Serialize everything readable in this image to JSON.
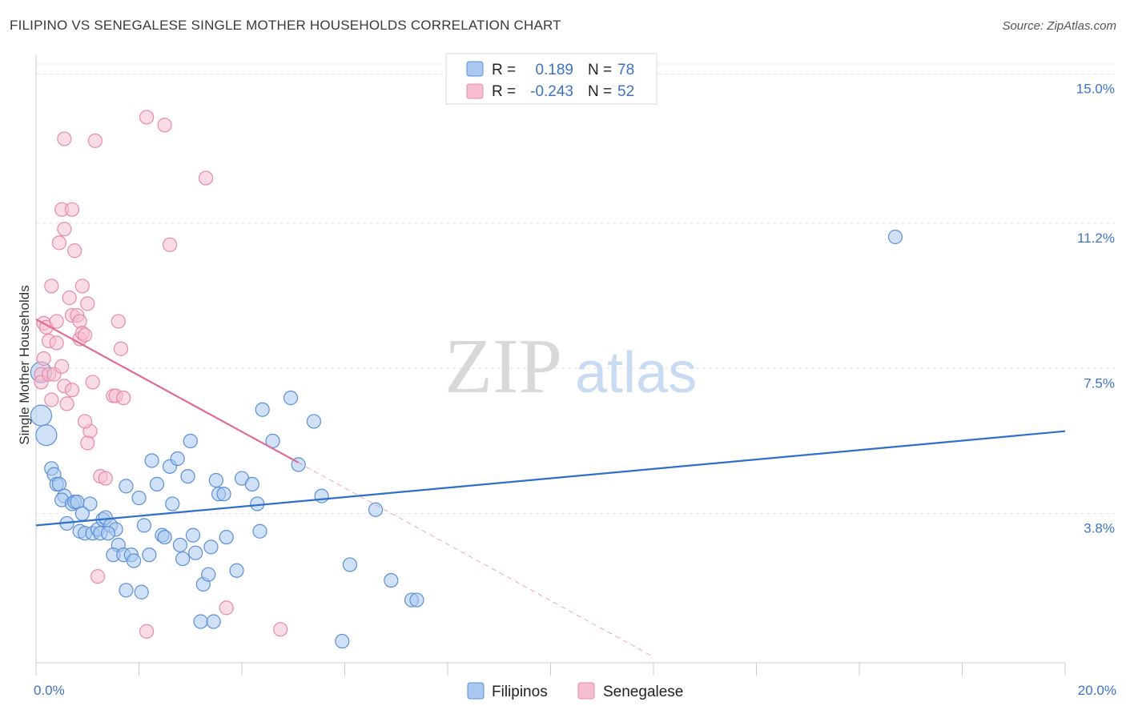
{
  "chart_data": {
    "type": "scatter",
    "title": "FILIPINO VS SENEGALESE SINGLE MOTHER HOUSEHOLDS CORRELATION CHART",
    "source": "Source: ZipAtlas.com",
    "ylabel": "Single Mother Households",
    "xlabel": "",
    "xlim": [
      0,
      20
    ],
    "ylim": [
      0,
      15.5
    ],
    "x_tick_labels": [
      "0.0%",
      "20.0%"
    ],
    "y_ticks": [
      3.8,
      7.5,
      11.2,
      15.0
    ],
    "y_tick_labels": [
      "3.8%",
      "7.5%",
      "11.2%",
      "15.0%"
    ],
    "grid": true,
    "watermark": "ZIPatlas",
    "legend": {
      "position": "top-center",
      "entries": [
        {
          "r_label": "R =",
          "r_value": "0.189",
          "n_label": "N =",
          "n_value": "78"
        },
        {
          "r_label": "R =",
          "r_value": "-0.243",
          "n_label": "N =",
          "n_value": "52"
        }
      ]
    },
    "series": [
      {
        "name": "Filipinos",
        "color": "#5b8fd8",
        "fill": "#aac8f0",
        "trend": {
          "x0": 0,
          "y0": 3.5,
          "x1": 20,
          "y1": 5.9,
          "color": "#2e6fcc"
        },
        "points": [
          [
            0.1,
            7.4
          ],
          [
            0.1,
            6.3
          ],
          [
            0.2,
            5.8
          ],
          [
            0.3,
            4.95
          ],
          [
            0.35,
            4.8
          ],
          [
            0.4,
            4.55
          ],
          [
            0.45,
            4.55
          ],
          [
            0.55,
            4.25
          ],
          [
            0.5,
            4.15
          ],
          [
            0.7,
            4.05
          ],
          [
            0.75,
            4.1
          ],
          [
            0.8,
            4.1
          ],
          [
            1.05,
            4.05
          ],
          [
            0.9,
            3.8
          ],
          [
            0.6,
            3.55
          ],
          [
            0.85,
            3.35
          ],
          [
            0.95,
            3.3
          ],
          [
            1.1,
            3.3
          ],
          [
            1.2,
            3.4
          ],
          [
            1.25,
            3.3
          ],
          [
            1.3,
            3.65
          ],
          [
            1.35,
            3.7
          ],
          [
            1.45,
            3.5
          ],
          [
            1.55,
            3.4
          ],
          [
            1.4,
            3.3
          ],
          [
            1.6,
            3.0
          ],
          [
            1.5,
            2.75
          ],
          [
            1.7,
            2.75
          ],
          [
            1.85,
            2.75
          ],
          [
            1.9,
            2.6
          ],
          [
            1.75,
            4.5
          ],
          [
            2.0,
            4.2
          ],
          [
            2.1,
            3.5
          ],
          [
            2.2,
            2.75
          ],
          [
            2.25,
            5.15
          ],
          [
            2.35,
            4.55
          ],
          [
            2.45,
            3.25
          ],
          [
            2.5,
            3.2
          ],
          [
            2.6,
            5.0
          ],
          [
            2.65,
            4.05
          ],
          [
            2.75,
            5.2
          ],
          [
            2.8,
            3.0
          ],
          [
            2.85,
            2.65
          ],
          [
            2.95,
            4.75
          ],
          [
            3.0,
            5.65
          ],
          [
            3.05,
            3.25
          ],
          [
            3.1,
            2.8
          ],
          [
            3.25,
            2.0
          ],
          [
            3.35,
            2.25
          ],
          [
            3.4,
            2.95
          ],
          [
            3.5,
            4.65
          ],
          [
            3.55,
            4.3
          ],
          [
            3.65,
            4.3
          ],
          [
            3.7,
            3.2
          ],
          [
            3.9,
            2.35
          ],
          [
            4.0,
            4.7
          ],
          [
            4.2,
            4.55
          ],
          [
            4.3,
            4.05
          ],
          [
            4.35,
            3.35
          ],
          [
            4.4,
            6.45
          ],
          [
            4.6,
            5.65
          ],
          [
            4.95,
            6.75
          ],
          [
            5.1,
            5.05
          ],
          [
            5.4,
            6.15
          ],
          [
            5.55,
            4.25
          ],
          [
            6.1,
            2.5
          ],
          [
            6.6,
            3.9
          ],
          [
            6.9,
            2.1
          ],
          [
            7.3,
            1.6
          ],
          [
            7.4,
            1.6
          ],
          [
            5.95,
            0.55
          ],
          [
            3.2,
            1.05
          ],
          [
            3.45,
            1.05
          ],
          [
            2.05,
            1.8
          ],
          [
            1.75,
            1.85
          ],
          [
            16.7,
            10.85
          ]
        ]
      },
      {
        "name": "Senegalese",
        "color": "#e88aa8",
        "fill": "#f5bfd0",
        "trend": {
          "x0": 0,
          "y0": 8.75,
          "x1": 5.1,
          "y1": 5.1,
          "dash_x1": 12.0,
          "dash_y1": 0.15,
          "color": "#e06a92"
        },
        "points": [
          [
            0.1,
            7.35
          ],
          [
            0.1,
            7.15
          ],
          [
            0.15,
            7.75
          ],
          [
            0.15,
            8.65
          ],
          [
            0.2,
            8.55
          ],
          [
            0.25,
            8.2
          ],
          [
            0.25,
            7.35
          ],
          [
            0.3,
            6.7
          ],
          [
            0.3,
            9.6
          ],
          [
            0.35,
            7.35
          ],
          [
            0.4,
            8.7
          ],
          [
            0.4,
            8.15
          ],
          [
            0.45,
            10.7
          ],
          [
            0.5,
            7.55
          ],
          [
            0.5,
            11.55
          ],
          [
            0.55,
            11.05
          ],
          [
            0.55,
            7.05
          ],
          [
            0.6,
            6.6
          ],
          [
            0.65,
            9.3
          ],
          [
            0.7,
            11.55
          ],
          [
            0.7,
            6.95
          ],
          [
            0.75,
            10.5
          ],
          [
            0.7,
            8.85
          ],
          [
            0.8,
            8.85
          ],
          [
            0.85,
            8.7
          ],
          [
            0.85,
            8.25
          ],
          [
            0.9,
            8.4
          ],
          [
            0.9,
            9.6
          ],
          [
            0.95,
            8.35
          ],
          [
            1.0,
            9.15
          ],
          [
            1.05,
            5.9
          ],
          [
            1.0,
            5.6
          ],
          [
            1.1,
            7.15
          ],
          [
            1.15,
            13.3
          ],
          [
            1.2,
            2.2
          ],
          [
            1.25,
            4.75
          ],
          [
            1.35,
            4.7
          ],
          [
            1.5,
            6.8
          ],
          [
            1.55,
            6.8
          ],
          [
            1.6,
            8.7
          ],
          [
            1.65,
            8.0
          ],
          [
            1.7,
            6.75
          ],
          [
            0.55,
            13.35
          ],
          [
            2.15,
            13.9
          ],
          [
            2.5,
            13.7
          ],
          [
            2.6,
            10.65
          ],
          [
            3.3,
            12.35
          ],
          [
            3.7,
            1.4
          ],
          [
            4.75,
            0.85
          ],
          [
            2.15,
            0.8
          ],
          [
            0.95,
            6.15
          ]
        ]
      }
    ]
  },
  "bottom_legend": {
    "filipinos": "Filipinos",
    "senegalese": "Senegalese"
  }
}
